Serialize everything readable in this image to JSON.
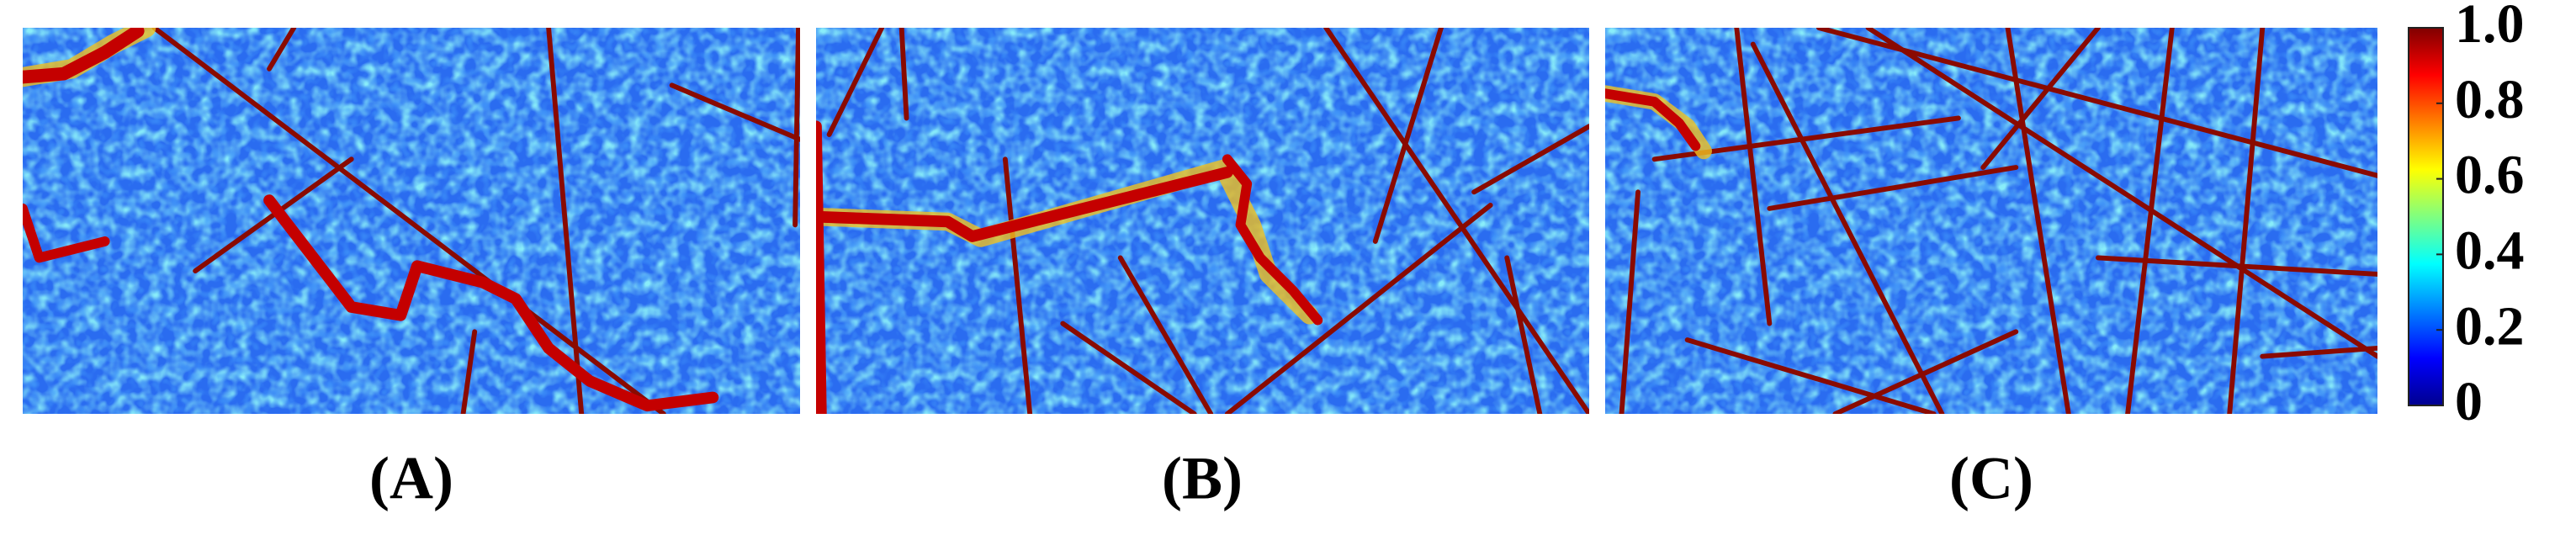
{
  "panels": [
    {
      "label": "(A)"
    },
    {
      "label": "(B)"
    },
    {
      "label": "(C)"
    }
  ],
  "colorbar": {
    "clim": [
      0,
      1
    ],
    "ticks": [
      0,
      0.2,
      0.4,
      0.6,
      0.8,
      {
        "value": 1,
        "label": "1.0"
      }
    ]
  }
}
